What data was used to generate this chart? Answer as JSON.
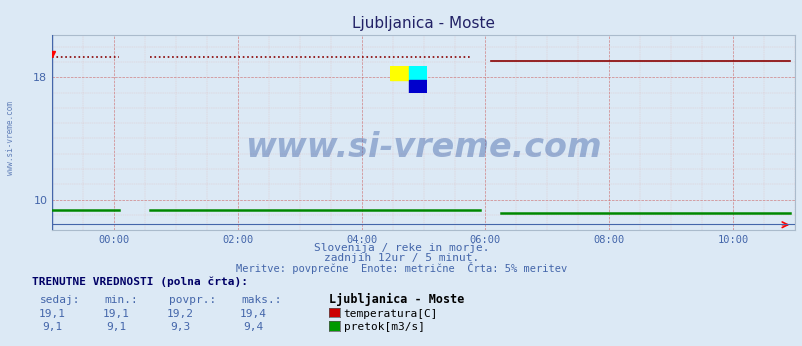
{
  "title": "Ljubljanica - Moste",
  "bg_color": "#dce9f5",
  "plot_bg_color": "#dce9f5",
  "grid_color_major": "#cc6666",
  "grid_color_minor": "#ddaaaa",
  "x_min": 0,
  "x_max": 144,
  "y_min": 8.0,
  "y_max": 20.8,
  "y_ticks": [
    10,
    18
  ],
  "x_tick_labels": [
    "00:00",
    "02:00",
    "04:00",
    "06:00",
    "08:00",
    "10:00"
  ],
  "x_tick_positions": [
    12,
    36,
    60,
    84,
    108,
    132
  ],
  "temp_color": "#880000",
  "flow_color": "#008800",
  "watermark": "www.si-vreme.com",
  "watermark_color": "#4466aa",
  "footer_line1": "Slovenija / reke in morje.",
  "footer_line2": "zadnjih 12ur / 5 minut.",
  "footer_line3": "Meritve: povprečne  Enote: metrične  Črta: 5% meritev",
  "footer_color": "#4466aa",
  "sidebar_text": "www.si-vreme.com",
  "sidebar_color": "#4466aa",
  "legend_title": "Ljubljanica - Moste",
  "legend_entries": [
    "temperatura[C]",
    "pretok[m3/s]"
  ],
  "legend_colors": [
    "#cc0000",
    "#009900"
  ],
  "table_header": [
    "sedaj:",
    "min.:",
    "povpr.:",
    "maks.:"
  ],
  "table_data": [
    [
      "19,1",
      "19,1",
      "19,2",
      "19,4"
    ],
    [
      "9,1",
      "9,1",
      "9,3",
      "9,4"
    ]
  ],
  "table_label": "TRENUTNE VREDNOSTI (polna črta):"
}
